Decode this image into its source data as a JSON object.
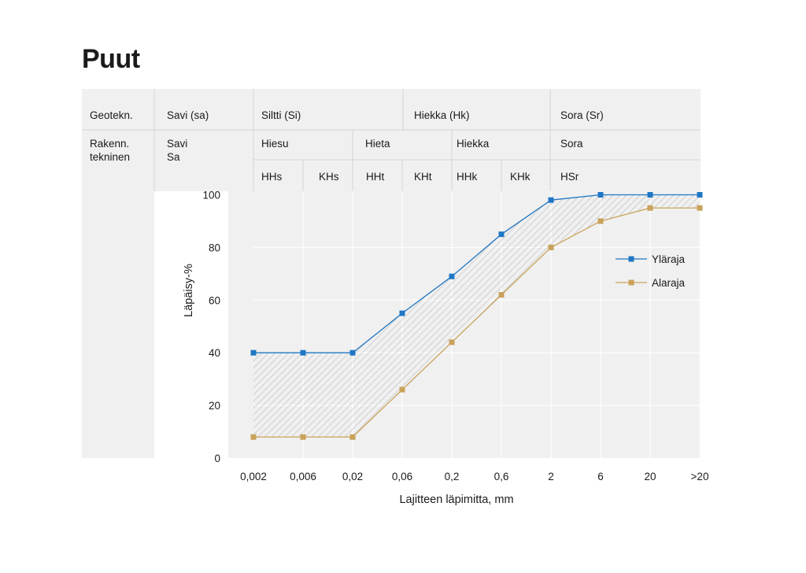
{
  "title": "Puut",
  "chart_data": {
    "type": "line",
    "ylabel": "Läpäisy-%",
    "xlabel": "Lajitteen läpimitta, mm",
    "x": [
      "0,002",
      "0,006",
      "0,02",
      "0,06",
      "0,2",
      "0,6",
      "2",
      "6",
      "20",
      ">20"
    ],
    "yticks": [
      "0",
      "20",
      "40",
      "60",
      "80",
      "100"
    ],
    "ylim": [
      0,
      100
    ],
    "grid": true,
    "legend_position": "right",
    "fill_between": "hatched gray area between series",
    "series": [
      {
        "name": "Yläraja",
        "color": "#1f77c4",
        "values": [
          40,
          40,
          40,
          55,
          69,
          85,
          98,
          100,
          100,
          100
        ]
      },
      {
        "name": "Alaraja",
        "color": "#c9a25a",
        "values": [
          8,
          8,
          8,
          26,
          44,
          62,
          80,
          90,
          95,
          95
        ]
      }
    ],
    "classification": {
      "row1_label": "Geotekn.",
      "row1": [
        "Savi (sa)",
        "Siltti (Si)",
        "Hiekka (Hk)",
        "Sora (Sr)"
      ],
      "row2_label_line1": "Rakenn.",
      "row2_label_line2": "tekninen",
      "savi_line1": "Savi",
      "savi_line2": "Sa",
      "row2": [
        "Hiesu",
        "Hieta",
        "Hiekka",
        "Sora"
      ],
      "row3": [
        "HHs",
        "KHs",
        "HHt",
        "KHt",
        "HHk",
        "KHk",
        "HSr"
      ]
    }
  }
}
